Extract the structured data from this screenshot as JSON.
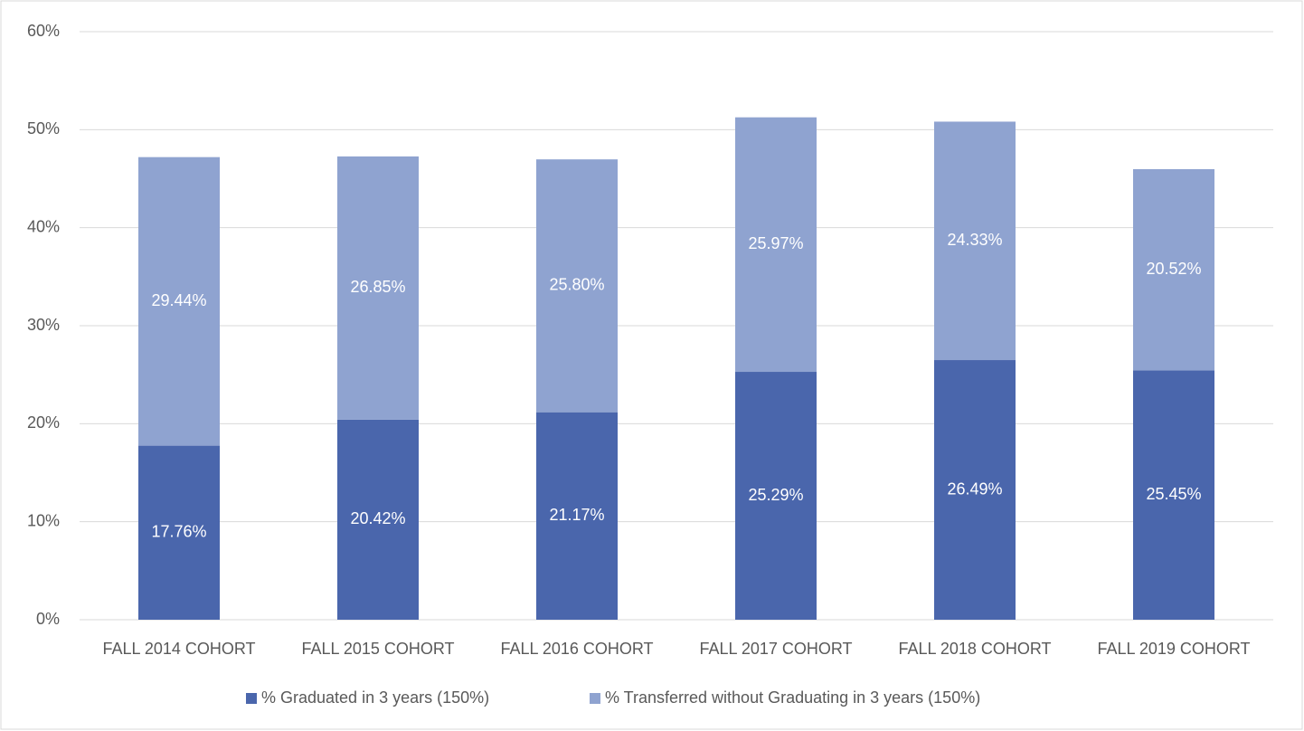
{
  "chart_data": {
    "type": "bar",
    "stacked": true,
    "categories": [
      "FALL 2014 COHORT",
      "FALL 2015 COHORT",
      "FALL 2016 COHORT",
      "FALL 2017 COHORT",
      "FALL 2018 COHORT",
      "FALL 2019 COHORT"
    ],
    "series": [
      {
        "name": "% Graduated in 3 years (150%)",
        "color": "#4a66ac",
        "values": [
          17.76,
          20.42,
          21.17,
          25.29,
          26.49,
          25.45
        ],
        "value_labels": [
          "17.76%",
          "20.42%",
          "21.17%",
          "25.29%",
          "26.49%",
          "25.45%"
        ]
      },
      {
        "name": "% Transferred without Graduating in 3 years (150%)",
        "color": "#8fa3d0",
        "values": [
          29.44,
          26.85,
          25.8,
          25.97,
          24.33,
          20.52
        ],
        "value_labels": [
          "29.44%",
          "26.85%",
          "25.80%",
          "25.97%",
          "24.33%",
          "20.52%"
        ]
      }
    ],
    "ylim": [
      0,
      60
    ],
    "yticks": [
      {
        "value": 0,
        "label": "0%"
      },
      {
        "value": 10,
        "label": "10%"
      },
      {
        "value": 20,
        "label": "20%"
      },
      {
        "value": 30,
        "label": "30%"
      },
      {
        "value": 40,
        "label": "40%"
      },
      {
        "value": 50,
        "label": "50%"
      },
      {
        "value": 60,
        "label": "60%"
      }
    ],
    "grid": true,
    "legend": "bottom"
  }
}
